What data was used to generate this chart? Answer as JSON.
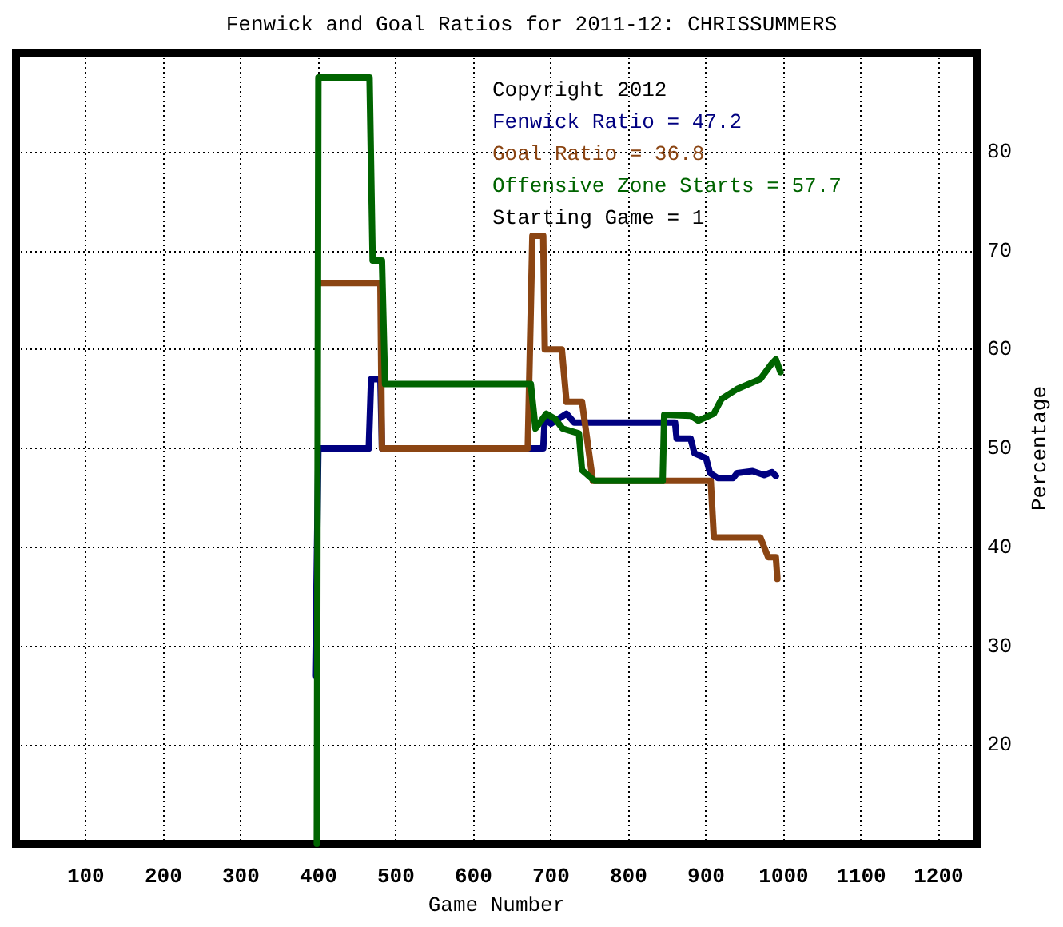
{
  "chart_data": {
    "type": "line",
    "title": "Fenwick and Goal Ratios for 2011-12: CHRISSUMMERS",
    "xlabel": "Game Number",
    "ylabel": "Percentage",
    "xlim": [
      10,
      1250
    ],
    "ylim": [
      10,
      90
    ],
    "xticks": [
      100,
      200,
      300,
      400,
      500,
      600,
      700,
      800,
      900,
      1000,
      1100,
      1200
    ],
    "yticks": [
      20,
      30,
      40,
      50,
      60,
      70,
      80
    ],
    "grid": true,
    "legend": "top right",
    "marker": "none",
    "line_style": "solid",
    "annotations": [
      "Copyright 2012",
      "Starting Game = 1"
    ],
    "series": [
      {
        "name": "Fenwick Ratio = 47.2",
        "color": "#000080",
        "x": [
          396,
          400,
          465,
          468,
          480,
          482,
          670,
          690,
          692,
          700,
          720,
          730,
          860,
          862,
          880,
          885,
          900,
          905,
          915,
          935,
          940,
          960,
          975,
          985,
          990
        ],
        "values": [
          27,
          50,
          50,
          57,
          57,
          50,
          50,
          50,
          53,
          52.5,
          53.5,
          52.6,
          52.6,
          51,
          51,
          49.5,
          49,
          47.5,
          47,
          47,
          47.5,
          47.7,
          47.3,
          47.6,
          47.2
        ]
      },
      {
        "name": "Goal Ratio = 36.8",
        "color": "#8b4513",
        "x": [
          400,
          480,
          482,
          670,
          676,
          690,
          692,
          714,
          720,
          740,
          754,
          906,
          910,
          970,
          980,
          990,
          992
        ],
        "values": [
          66.7,
          66.7,
          50,
          50,
          71.5,
          71.5,
          60,
          60,
          54.7,
          54.7,
          46.7,
          46.7,
          41,
          41,
          39,
          39,
          36.8
        ]
      },
      {
        "name": "Offensive Zone Starts = 57.7",
        "color": "#006400",
        "x": [
          398,
          400,
          466,
          470,
          482,
          486,
          674,
          680,
          694,
          705,
          715,
          736,
          740,
          756,
          844,
          846,
          880,
          890,
          910,
          920,
          940,
          970,
          984,
          990,
          996
        ],
        "values": [
          10,
          87.5,
          87.5,
          69,
          69,
          56.5,
          56.5,
          52,
          53.5,
          53,
          52,
          51.5,
          47.8,
          46.7,
          46.7,
          53.4,
          53.3,
          52.8,
          53.5,
          55,
          56,
          57,
          58.5,
          59,
          57.7
        ]
      }
    ]
  }
}
